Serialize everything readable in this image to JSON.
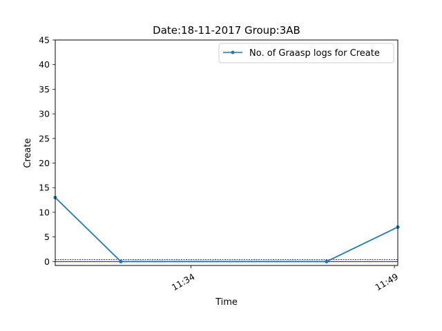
{
  "chart_data": {
    "type": "line",
    "title": "Date:18-11-2017  Group:3AB",
    "xlabel": "Time",
    "ylabel": "Create",
    "x_ticks": [
      "11:34",
      "11:49"
    ],
    "y_ticks": [
      "0",
      "5",
      "10",
      "15",
      "20",
      "25",
      "30",
      "35",
      "40",
      "45"
    ],
    "ylim": [
      -0.8,
      45
    ],
    "xlim": [
      "11:24:00",
      "11:49:15"
    ],
    "series": [
      {
        "name": "No. of Graasp logs for Create",
        "color": "#1f77b4",
        "marker": "point",
        "x": [
          "11:24:00",
          "11:28:50",
          "11:44:00",
          "11:49:15"
        ],
        "y": [
          13,
          0,
          0,
          7
        ]
      }
    ],
    "reference_lines": [
      {
        "y": 0.4,
        "color": "#0000cc",
        "style": "dotted"
      },
      {
        "y": 0,
        "color": "#000000",
        "style": "solid"
      }
    ],
    "legend": {
      "placement": "top-right"
    },
    "grid": false
  }
}
